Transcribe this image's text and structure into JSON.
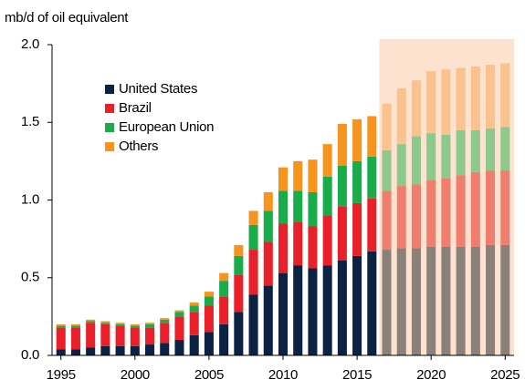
{
  "chart_data": {
    "type": "bar",
    "stacked": true,
    "y_label": "mb/d of oil equivalent",
    "x": [
      1995,
      1996,
      1997,
      1998,
      1999,
      2000,
      2001,
      2002,
      2003,
      2004,
      2005,
      2006,
      2007,
      2008,
      2009,
      2010,
      2011,
      2012,
      2013,
      2014,
      2015,
      2016,
      2017,
      2018,
      2019,
      2020,
      2021,
      2022,
      2023,
      2024,
      2025
    ],
    "xlim": [
      1994.4,
      2025.6
    ],
    "xticks": [
      1995,
      2000,
      2005,
      2010,
      2015,
      2020,
      2025
    ],
    "ylim": [
      0,
      2
    ],
    "yticks": [
      {
        "value": 0,
        "label": "0.0"
      },
      {
        "value": 0.5,
        "label": "0.5"
      },
      {
        "value": 1,
        "label": "1.0"
      },
      {
        "value": 1.5,
        "label": "1.5"
      },
      {
        "value": 2,
        "label": "2.0"
      }
    ],
    "projection_start": 2017,
    "projection_shade": "#fde3cf",
    "legend": "upper left",
    "series": [
      {
        "name": "United States",
        "color": "#0b2245",
        "projection_color": "#8a817a",
        "values": [
          0.04,
          0.04,
          0.05,
          0.06,
          0.06,
          0.06,
          0.07,
          0.08,
          0.1,
          0.13,
          0.15,
          0.2,
          0.28,
          0.39,
          0.45,
          0.53,
          0.58,
          0.56,
          0.58,
          0.61,
          0.64,
          0.67,
          0.68,
          0.69,
          0.69,
          0.7,
          0.7,
          0.7,
          0.7,
          0.71,
          0.71
        ]
      },
      {
        "name": "Brazil",
        "color": "#e8202a",
        "projection_color": "#f07e6e",
        "values": [
          0.14,
          0.14,
          0.16,
          0.14,
          0.13,
          0.12,
          0.11,
          0.13,
          0.15,
          0.15,
          0.17,
          0.18,
          0.24,
          0.29,
          0.28,
          0.32,
          0.28,
          0.27,
          0.32,
          0.35,
          0.34,
          0.34,
          0.38,
          0.4,
          0.41,
          0.43,
          0.44,
          0.46,
          0.48,
          0.48,
          0.48
        ]
      },
      {
        "name": "European Union",
        "color": "#1aab4b",
        "projection_color": "#8cc98a",
        "values": [
          0.01,
          0.01,
          0.01,
          0.01,
          0.01,
          0.01,
          0.02,
          0.02,
          0.03,
          0.04,
          0.06,
          0.1,
          0.12,
          0.16,
          0.2,
          0.21,
          0.2,
          0.22,
          0.25,
          0.26,
          0.27,
          0.27,
          0.26,
          0.27,
          0.31,
          0.3,
          0.28,
          0.29,
          0.27,
          0.27,
          0.28
        ]
      },
      {
        "name": "Others",
        "color": "#f7941d",
        "projection_color": "#f9c28e",
        "values": [
          0.01,
          0.01,
          0.01,
          0.01,
          0.01,
          0.01,
          0.01,
          0.01,
          0.01,
          0.02,
          0.03,
          0.05,
          0.07,
          0.09,
          0.12,
          0.15,
          0.19,
          0.21,
          0.21,
          0.27,
          0.27,
          0.26,
          0.3,
          0.36,
          0.36,
          0.4,
          0.42,
          0.4,
          0.41,
          0.41,
          0.41
        ]
      }
    ]
  }
}
